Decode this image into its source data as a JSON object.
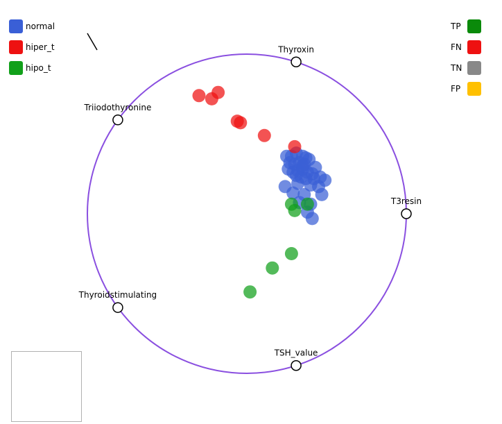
{
  "chart_data": {
    "type": "scatter",
    "title": "",
    "anchors": [
      {
        "label": "Thyroxin",
        "angle_deg": 72
      },
      {
        "label": "T3resin",
        "angle_deg": 0
      },
      {
        "label": "TSH_value",
        "angle_deg": -72
      },
      {
        "label": "Thyroidstimulating",
        "angle_deg": -144
      },
      {
        "label": "Triiodothyronine",
        "angle_deg": 144
      }
    ],
    "circle_color": "#8a4fe0",
    "class_legend": [
      {
        "label": "normal",
        "color": "#3a5fd6"
      },
      {
        "label": "hiper_t",
        "color": "#ee1111"
      },
      {
        "label": "hipo_t",
        "color": "#11a01a"
      }
    ],
    "confusion_legend": [
      {
        "label": "TP",
        "color": "#0a8a0a"
      },
      {
        "label": "FN",
        "color": "#ee1111"
      },
      {
        "label": "TN",
        "color": "#888888"
      },
      {
        "label": "FP",
        "color": "#ffc000"
      }
    ],
    "series": [
      {
        "name": "normal",
        "color": "#3a5fd6",
        "points": [
          [
            0.25,
            0.36
          ],
          [
            0.28,
            0.36
          ],
          [
            0.31,
            0.38
          ],
          [
            0.35,
            0.36
          ],
          [
            0.37,
            0.35
          ],
          [
            0.39,
            0.34
          ],
          [
            0.27,
            0.32
          ],
          [
            0.3,
            0.31
          ],
          [
            0.33,
            0.32
          ],
          [
            0.36,
            0.31
          ],
          [
            0.26,
            0.28
          ],
          [
            0.29,
            0.26
          ],
          [
            0.32,
            0.27
          ],
          [
            0.35,
            0.28
          ],
          [
            0.38,
            0.26
          ],
          [
            0.41,
            0.25
          ],
          [
            0.31,
            0.24
          ],
          [
            0.34,
            0.23
          ],
          [
            0.37,
            0.22
          ],
          [
            0.42,
            0.22
          ],
          [
            0.46,
            0.23
          ],
          [
            0.49,
            0.21
          ],
          [
            0.24,
            0.17
          ],
          [
            0.32,
            0.19
          ],
          [
            0.4,
            0.18
          ],
          [
            0.45,
            0.17
          ],
          [
            0.29,
            0.13
          ],
          [
            0.36,
            0.12
          ],
          [
            0.47,
            0.12
          ],
          [
            0.33,
            0.07
          ],
          [
            0.4,
            0.06
          ],
          [
            0.38,
            0.01
          ],
          [
            0.41,
            -0.03
          ],
          [
            0.35,
            0.3
          ],
          [
            0.43,
            0.29
          ]
        ]
      },
      {
        "name": "hiper_t",
        "color": "#ee1111",
        "points": [
          [
            -0.3,
            0.74
          ],
          [
            -0.22,
            0.72
          ],
          [
            -0.18,
            0.76
          ],
          [
            -0.06,
            0.58
          ],
          [
            -0.04,
            0.57
          ],
          [
            0.11,
            0.49
          ],
          [
            0.3,
            0.42
          ]
        ]
      },
      {
        "name": "hipo_t",
        "color": "#11a01a",
        "points": [
          [
            0.28,
            0.06
          ],
          [
            0.38,
            0.06
          ],
          [
            0.3,
            0.02
          ],
          [
            0.28,
            -0.25
          ],
          [
            0.16,
            -0.34
          ],
          [
            0.02,
            -0.49
          ]
        ]
      }
    ]
  }
}
